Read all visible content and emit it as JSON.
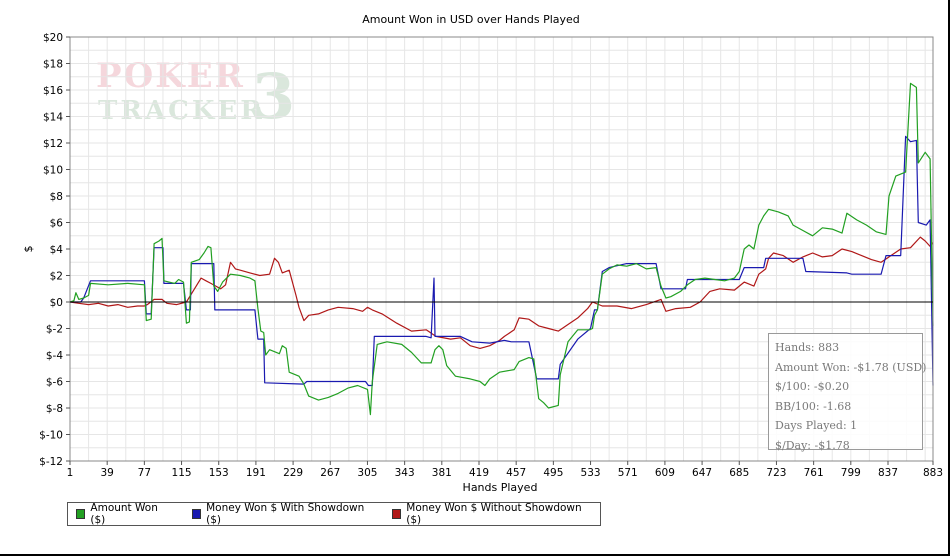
{
  "watermark": {
    "top": "POKER",
    "bottom": "TRACKER",
    "number": "3"
  },
  "stats": {
    "hands": "Hands: 883",
    "amount_won": "Amount Won: -$1.78 (USD)",
    "per100": "$/100: -$0.20",
    "bb100": "BB/100: -1.68",
    "days": "Days Played: 1",
    "per_day": "$/Day: -$1.78"
  },
  "colors": {
    "green": "#22a022",
    "blue": "#1a1ab0",
    "red": "#b01818",
    "grid": "#e6e6e6"
  },
  "chart_data": {
    "type": "line",
    "title": "Amount Won in USD over Hands Played",
    "xlabel": "Hands Played",
    "ylabel": "$",
    "xlim": [
      1,
      883
    ],
    "ylim": [
      -12,
      20
    ],
    "x_ticks": [
      1,
      39,
      77,
      115,
      153,
      191,
      229,
      267,
      305,
      343,
      381,
      419,
      457,
      495,
      533,
      571,
      609,
      647,
      685,
      723,
      761,
      799,
      837,
      883
    ],
    "y_ticks": [
      -12,
      -10,
      -8,
      -6,
      -4,
      -2,
      0,
      2,
      4,
      6,
      8,
      10,
      12,
      14,
      16,
      18,
      20
    ],
    "y_tick_labels": [
      "$-12",
      "$-10",
      "$-8",
      "$-6",
      "$-4",
      "$-2",
      "$0",
      "$2",
      "$4",
      "$6",
      "$8",
      "$10",
      "$12",
      "$14",
      "$16",
      "$18",
      "$20"
    ],
    "grid": true,
    "legend_position": "bottom-left",
    "series": [
      {
        "name": "Amount Won ($)",
        "color": "#22a022",
        "points": [
          [
            1,
            0
          ],
          [
            5,
            0.1
          ],
          [
            7,
            0.7
          ],
          [
            10,
            0.2
          ],
          [
            15,
            0.3
          ],
          [
            20,
            0.5
          ],
          [
            22,
            1.4
          ],
          [
            40,
            1.3
          ],
          [
            60,
            1.4
          ],
          [
            77,
            1.3
          ],
          [
            79,
            -1.4
          ],
          [
            84,
            -1.3
          ],
          [
            87,
            4.4
          ],
          [
            92,
            4.6
          ],
          [
            95,
            4.8
          ],
          [
            97,
            1.6
          ],
          [
            108,
            1.4
          ],
          [
            112,
            1.7
          ],
          [
            117,
            1.5
          ],
          [
            120,
            -1.6
          ],
          [
            123,
            -1.5
          ],
          [
            125,
            3.0
          ],
          [
            133,
            3.2
          ],
          [
            138,
            3.7
          ],
          [
            142,
            4.2
          ],
          [
            145,
            4.1
          ],
          [
            148,
            1.2
          ],
          [
            152,
            0.8
          ],
          [
            157,
            1.5
          ],
          [
            165,
            2.1
          ],
          [
            175,
            2.0
          ],
          [
            185,
            1.8
          ],
          [
            190,
            1.6
          ],
          [
            193,
            -0.5
          ],
          [
            196,
            -2.2
          ],
          [
            199,
            -2.3
          ],
          [
            201,
            -4.0
          ],
          [
            205,
            -3.6
          ],
          [
            215,
            -3.9
          ],
          [
            218,
            -3.3
          ],
          [
            222,
            -3.5
          ],
          [
            225,
            -5.3
          ],
          [
            235,
            -5.6
          ],
          [
            240,
            -6.2
          ],
          [
            245,
            -7.1
          ],
          [
            255,
            -7.4
          ],
          [
            265,
            -7.2
          ],
          [
            275,
            -6.9
          ],
          [
            285,
            -6.5
          ],
          [
            295,
            -6.3
          ],
          [
            305,
            -6.6
          ],
          [
            308,
            -8.5
          ],
          [
            310,
            -6.0
          ],
          [
            315,
            -3.2
          ],
          [
            325,
            -3.0
          ],
          [
            340,
            -3.2
          ],
          [
            350,
            -3.8
          ],
          [
            360,
            -4.6
          ],
          [
            370,
            -4.6
          ],
          [
            374,
            -3.6
          ],
          [
            378,
            -3.3
          ],
          [
            382,
            -3.6
          ],
          [
            386,
            -4.8
          ],
          [
            395,
            -5.6
          ],
          [
            410,
            -5.8
          ],
          [
            420,
            -6.0
          ],
          [
            425,
            -6.3
          ],
          [
            430,
            -5.8
          ],
          [
            440,
            -5.3
          ],
          [
            455,
            -5.1
          ],
          [
            460,
            -4.5
          ],
          [
            470,
            -4.2
          ],
          [
            475,
            -4.3
          ],
          [
            480,
            -7.3
          ],
          [
            485,
            -7.6
          ],
          [
            490,
            -8.0
          ],
          [
            500,
            -7.8
          ],
          [
            502,
            -5.5
          ],
          [
            510,
            -3.0
          ],
          [
            520,
            -2.1
          ],
          [
            532,
            -2.1
          ],
          [
            535,
            -2.0
          ],
          [
            537,
            -1.0
          ],
          [
            540,
            -0.6
          ],
          [
            545,
            2.1
          ],
          [
            552,
            2.5
          ],
          [
            560,
            2.8
          ],
          [
            570,
            2.7
          ],
          [
            580,
            2.9
          ],
          [
            590,
            2.5
          ],
          [
            600,
            2.6
          ],
          [
            605,
            1.2
          ],
          [
            610,
            0.3
          ],
          [
            615,
            0.4
          ],
          [
            625,
            0.8
          ],
          [
            632,
            1.3
          ],
          [
            640,
            1.7
          ],
          [
            650,
            1.8
          ],
          [
            660,
            1.7
          ],
          [
            670,
            1.6
          ],
          [
            680,
            1.8
          ],
          [
            685,
            2.3
          ],
          [
            690,
            4.0
          ],
          [
            695,
            4.3
          ],
          [
            700,
            4.0
          ],
          [
            705,
            5.8
          ],
          [
            710,
            6.5
          ],
          [
            715,
            7.0
          ],
          [
            725,
            6.8
          ],
          [
            735,
            6.5
          ],
          [
            740,
            5.8
          ],
          [
            750,
            5.4
          ],
          [
            760,
            5.0
          ],
          [
            765,
            5.3
          ],
          [
            770,
            5.6
          ],
          [
            780,
            5.5
          ],
          [
            790,
            5.2
          ],
          [
            795,
            6.7
          ],
          [
            805,
            6.2
          ],
          [
            815,
            5.8
          ],
          [
            825,
            5.3
          ],
          [
            835,
            5.1
          ],
          [
            838,
            8.0
          ],
          [
            845,
            9.5
          ],
          [
            855,
            9.8
          ],
          [
            860,
            16.5
          ],
          [
            866,
            16.2
          ],
          [
            868,
            10.5
          ],
          [
            875,
            11.3
          ],
          [
            880,
            10.8
          ],
          [
            883,
            -1.8
          ]
        ]
      },
      {
        "name": "Money Won $ With Showdown ($)",
        "color": "#1a1ab0",
        "points": [
          [
            1,
            0
          ],
          [
            12,
            0
          ],
          [
            15,
            0.3
          ],
          [
            22,
            1.6
          ],
          [
            77,
            1.6
          ],
          [
            79,
            -0.9
          ],
          [
            84,
            -0.9
          ],
          [
            87,
            4.1
          ],
          [
            96,
            4.1
          ],
          [
            97,
            1.4
          ],
          [
            117,
            1.4
          ],
          [
            120,
            -0.6
          ],
          [
            124,
            -0.6
          ],
          [
            125,
            2.9
          ],
          [
            148,
            2.9
          ],
          [
            149,
            -0.6
          ],
          [
            190,
            -0.6
          ],
          [
            193,
            -2.8
          ],
          [
            199,
            -2.8
          ],
          [
            200,
            -6.1
          ],
          [
            240,
            -6.2
          ],
          [
            243,
            -6.0
          ],
          [
            303,
            -6.0
          ],
          [
            306,
            -6.3
          ],
          [
            310,
            -6.3
          ],
          [
            312,
            -2.6
          ],
          [
            365,
            -2.6
          ],
          [
            370,
            -2.7
          ],
          [
            373,
            1.8
          ],
          [
            374,
            -2.6
          ],
          [
            400,
            -2.6
          ],
          [
            412,
            -3.0
          ],
          [
            430,
            -3.1
          ],
          [
            445,
            -2.9
          ],
          [
            452,
            -3.0
          ],
          [
            470,
            -3.0
          ],
          [
            478,
            -5.8
          ],
          [
            500,
            -5.8
          ],
          [
            502,
            -4.7
          ],
          [
            520,
            -2.8
          ],
          [
            533,
            -2.0
          ],
          [
            537,
            -0.6
          ],
          [
            540,
            -0.6
          ],
          [
            545,
            2.3
          ],
          [
            552,
            2.6
          ],
          [
            558,
            2.7
          ],
          [
            570,
            2.9
          ],
          [
            600,
            2.9
          ],
          [
            605,
            1.0
          ],
          [
            630,
            1.0
          ],
          [
            632,
            1.7
          ],
          [
            685,
            1.7
          ],
          [
            690,
            2.6
          ],
          [
            710,
            2.6
          ],
          [
            712,
            3.3
          ],
          [
            750,
            3.3
          ],
          [
            753,
            2.3
          ],
          [
            795,
            2.2
          ],
          [
            800,
            2.1
          ],
          [
            830,
            2.1
          ],
          [
            835,
            3.5
          ],
          [
            850,
            3.5
          ],
          [
            855,
            12.5
          ],
          [
            860,
            12.1
          ],
          [
            866,
            12.2
          ],
          [
            868,
            6.0
          ],
          [
            876,
            5.8
          ],
          [
            880,
            6.2
          ],
          [
            883,
            -6.3
          ]
        ]
      },
      {
        "name": "Money Won $ Without Showdown ($)",
        "color": "#b01818",
        "points": [
          [
            1,
            0
          ],
          [
            10,
            -0.1
          ],
          [
            20,
            -0.2
          ],
          [
            30,
            -0.1
          ],
          [
            40,
            -0.3
          ],
          [
            50,
            -0.2
          ],
          [
            60,
            -0.4
          ],
          [
            70,
            -0.3
          ],
          [
            77,
            -0.3
          ],
          [
            80,
            -0.2
          ],
          [
            87,
            0.2
          ],
          [
            95,
            0.2
          ],
          [
            100,
            -0.1
          ],
          [
            110,
            -0.2
          ],
          [
            120,
            0.0
          ],
          [
            125,
            0.6
          ],
          [
            130,
            1.2
          ],
          [
            135,
            1.8
          ],
          [
            140,
            1.6
          ],
          [
            145,
            1.4
          ],
          [
            150,
            1.2
          ],
          [
            155,
            1.0
          ],
          [
            160,
            1.3
          ],
          [
            165,
            3.0
          ],
          [
            170,
            2.5
          ],
          [
            175,
            2.4
          ],
          [
            185,
            2.2
          ],
          [
            195,
            2.0
          ],
          [
            205,
            2.1
          ],
          [
            210,
            3.3
          ],
          [
            214,
            3.0
          ],
          [
            218,
            2.2
          ],
          [
            225,
            2.4
          ],
          [
            232,
            0.5
          ],
          [
            235,
            -0.4
          ],
          [
            240,
            -1.4
          ],
          [
            245,
            -1.0
          ],
          [
            255,
            -0.9
          ],
          [
            265,
            -0.6
          ],
          [
            275,
            -0.4
          ],
          [
            290,
            -0.5
          ],
          [
            300,
            -0.7
          ],
          [
            305,
            -0.4
          ],
          [
            310,
            -0.6
          ],
          [
            320,
            -0.9
          ],
          [
            335,
            -1.6
          ],
          [
            350,
            -2.2
          ],
          [
            365,
            -2.1
          ],
          [
            375,
            -2.6
          ],
          [
            390,
            -2.8
          ],
          [
            400,
            -2.7
          ],
          [
            410,
            -3.3
          ],
          [
            420,
            -3.5
          ],
          [
            430,
            -3.3
          ],
          [
            440,
            -2.9
          ],
          [
            445,
            -2.6
          ],
          [
            455,
            -2.1
          ],
          [
            460,
            -1.2
          ],
          [
            470,
            -1.3
          ],
          [
            480,
            -1.8
          ],
          [
            490,
            -2.0
          ],
          [
            500,
            -2.2
          ],
          [
            510,
            -1.7
          ],
          [
            520,
            -1.2
          ],
          [
            530,
            -0.5
          ],
          [
            535,
            0.0
          ],
          [
            545,
            -0.3
          ],
          [
            560,
            -0.3
          ],
          [
            575,
            -0.5
          ],
          [
            590,
            -0.2
          ],
          [
            605,
            0.2
          ],
          [
            610,
            -0.7
          ],
          [
            620,
            -0.5
          ],
          [
            635,
            -0.4
          ],
          [
            645,
            0.0
          ],
          [
            655,
            0.8
          ],
          [
            665,
            1.0
          ],
          [
            680,
            0.9
          ],
          [
            690,
            1.5
          ],
          [
            700,
            1.2
          ],
          [
            705,
            2.1
          ],
          [
            712,
            2.5
          ],
          [
            715,
            3.3
          ],
          [
            720,
            3.7
          ],
          [
            730,
            3.5
          ],
          [
            740,
            3.0
          ],
          [
            750,
            3.4
          ],
          [
            760,
            3.7
          ],
          [
            770,
            3.4
          ],
          [
            780,
            3.5
          ],
          [
            790,
            4.0
          ],
          [
            800,
            3.8
          ],
          [
            810,
            3.5
          ],
          [
            820,
            3.2
          ],
          [
            830,
            3.0
          ],
          [
            840,
            3.5
          ],
          [
            850,
            4.0
          ],
          [
            860,
            4.1
          ],
          [
            870,
            4.9
          ],
          [
            875,
            4.6
          ],
          [
            880,
            4.2
          ],
          [
            883,
            4.5
          ]
        ]
      }
    ]
  }
}
